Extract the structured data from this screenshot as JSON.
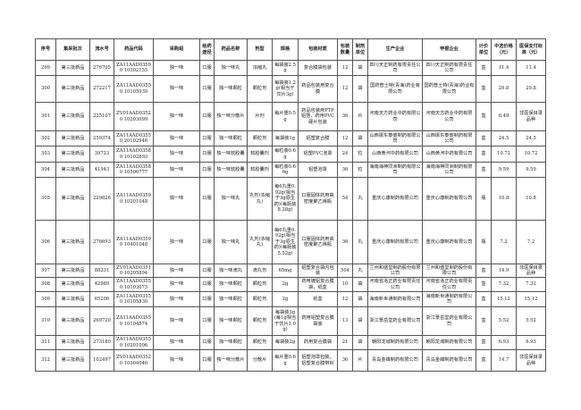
{
  "headers": [
    "序号",
    "集采批次",
    "流水号",
    "药品代码",
    "采购组",
    "给药途径",
    "药品名称",
    "剂型",
    "规格",
    "包装材质",
    "包装数量",
    "制剂单位",
    "生产企业",
    "申报企业",
    "计价单位",
    "中选价格（元）",
    "医保支付标准（元）"
  ],
  "rows": [
    [
      "299",
      "第三批新品",
      "276705",
      "ZA11AAD03590 10302155",
      "独一味",
      "口服",
      "独一味丸",
      "浓缩丸",
      "每袋装2.5g",
      "复合膜袋包装",
      "12",
      "袋",
      "四川天正制药有限责任公司",
      "四川天正制药有限责任公司",
      "盒",
      "11.4",
      "11.4"
    ],
    [
      "300",
      "第三批新品",
      "272217",
      "ZA11AAD03550 10105939",
      "独一味",
      "口服",
      "独一味颗粒",
      "颗粒剂",
      "每袋装1.2g(相当于饮片3g)",
      "药品包装用复合膜",
      "12",
      "袋",
      "国药普土特(青海)药业有限公司",
      "国药普土特(青海)药业有限公司",
      "盒",
      "29.8",
      "29.8"
    ],
    [
      "301",
      "第三批新品",
      "225107",
      "ZV01AAD03520 10203099",
      "独一味",
      "口服",
      "独一味分散片",
      "片剂",
      "每片重0.5g",
      "药品包装用PTP铝箔，药用PVC硬片包装",
      "36",
      "片",
      "河南天方药业中药有限公司",
      "河南天方药业中药有限公司",
      "盒",
      "6.48",
      "非医保目录品种"
    ],
    [
      "302",
      "第三批新品",
      "259374",
      "ZA11AAD03550 20102946",
      "独一味",
      "口服",
      "独一味颗粒",
      "颗粒剂",
      "每袋装1g",
      "铝塑复合膜",
      "12",
      "袋",
      "山西振东泰盛制药有限公司",
      "山西振东泰盛制药有限公司",
      "盒",
      "24.5",
      "24.5"
    ],
    [
      "303",
      "第三批新品",
      "39723",
      "ZA11AAD03580 10102893",
      "独一味",
      "口服",
      "独一味软胶囊",
      "软胶囊剂",
      "每粒装0.6g",
      "铝塑PVC泡罩",
      "24",
      "粒",
      "山西黄河中药有限公司",
      "山西黄河中药有限公司",
      "盒",
      "10.72",
      "10.72"
    ],
    [
      "304",
      "第三批新品",
      "41943",
      "ZA11AAD03580 10506777",
      "独一味",
      "口服",
      "独一味软胶囊",
      "软胶囊剂",
      "每粒装0.66g",
      "铝塑泡罩",
      "36",
      "粒",
      "海南海神同洲制药有限公司",
      "海南海神同洲制药有限公司",
      "盒",
      "9.59",
      "9.59"
    ],
    [
      "305",
      "第三批新品",
      "229826",
      "ZA11AAD03590 10201048",
      "独一味",
      "口服",
      "独一味丸",
      "丸剂(浓缩丸)",
      "每6丸重0.92g(相当于3g原生药)(每瓶装8.28g)",
      "口服固体药用高密度聚乙烯瓶",
      "54",
      "丸",
      "重庆心康制药有限公司",
      "重庆心康制药有限公司",
      "瓶",
      "10.8",
      "10.8"
    ],
    [
      "306",
      "第三批新品",
      "276693",
      "ZA11AAD03590 10401048",
      "独一味",
      "口服",
      "独一味丸",
      "丸剂(浓缩丸)",
      "每6丸重0.92g(相当于3g原生药)(每瓶装5.52g)",
      "口服固体药用高密度聚乙烯瓶",
      "36",
      "丸",
      "重庆心康制药有限公司",
      "重庆心康制药有限公司",
      "瓶",
      "7.2",
      "7.2"
    ],
    [
      "307",
      "第三批新品",
      "88231",
      "ZV01AAD03510 10205894",
      "独一味",
      "口服",
      "独一味滴丸",
      "滴丸剂",
      "65mg",
      "铝塑复合袋内包装",
      "504",
      "丸",
      "兰州和盛堂制药股份有限公司",
      "兰州和盛堂制药股份有限公司",
      "盒",
      "14.9",
      "非医保目录品种"
    ],
    [
      "308",
      "第三批新品",
      "42989",
      "ZA11AAD03550 10103075",
      "独一味",
      "口服",
      "独一味颗粒",
      "颗粒剂",
      "2g",
      "药用镀铝复合膜袋，纸盒",
      "10",
      "袋",
      "河南省洛正药业有限责任公司",
      "河南省洛正药业有限责任公司",
      "盒",
      "7.32",
      "7.32"
    ],
    [
      "309",
      "第三批新品",
      "65200",
      "ZA11AAD03550 10105830",
      "独一味",
      "口服",
      "独一味颗粒",
      "颗粒剂",
      "2g",
      "纸盒",
      "12",
      "袋",
      "海南新世通制药有限公司",
      "海南新世通制药有限公司",
      "盒",
      "15.12",
      "15.12"
    ],
    [
      "310",
      "第三批新品",
      "269720",
      "ZA11AAD03550 10104574",
      "独一味",
      "口服",
      "独一味颗粒",
      "颗粒剂",
      "每袋装3g(每1g相当于饮片1.0g)",
      "药用铝塑复合膜袋装",
      "13",
      "袋",
      "浙江景岳堂药业有限公司",
      "浙江景岳堂药业有限公司",
      "盒",
      "5.52",
      "5.52"
    ],
    [
      "311",
      "第三批新品",
      "273180",
      "ZA11AAD03550 10201096",
      "独一味",
      "口服",
      "独一味颗粒",
      "颗粒剂",
      "每袋装2g",
      "药用复合膜袋",
      "21",
      "袋",
      "朝阳龙城制药有限公司",
      "朝阳龙城制药有限公司",
      "盒",
      "6.93",
      "6.93"
    ],
    [
      "312",
      "第三批新品",
      "102497",
      "ZV01AAD03520 10304046",
      "独一味",
      "口服",
      "独一味分散片",
      "分散片",
      "每片重0.6g",
      "铝塑泡罩包装，铝塑复合膜带封",
      "36",
      "片",
      "青岛金峰制药有限公司",
      "青岛金峰制药有限公司",
      "盒",
      "14.7",
      "非医保目录品种"
    ]
  ]
}
